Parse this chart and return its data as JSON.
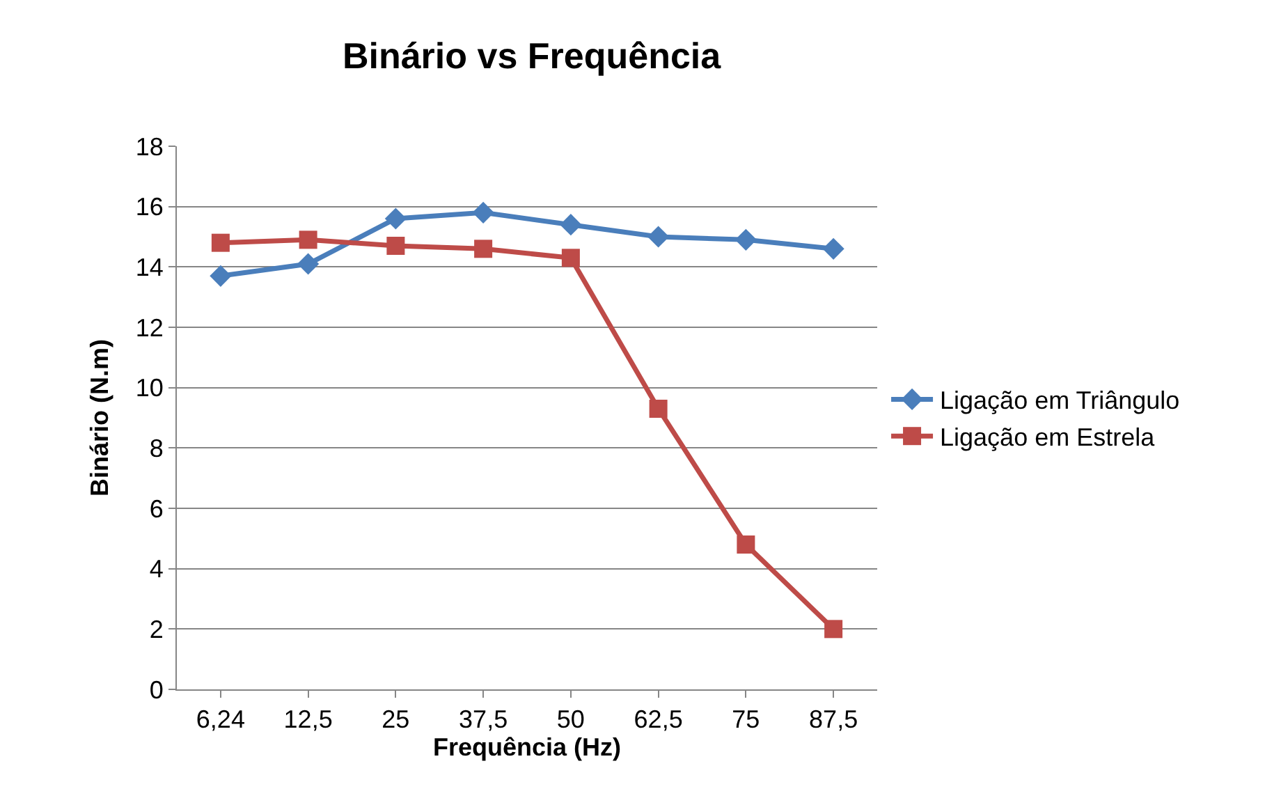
{
  "chart_data": {
    "type": "line",
    "title": "Binário vs Frequência",
    "xlabel": "Frequência (Hz)",
    "ylabel": "Binário (N.m)",
    "categories": [
      "6,24",
      "12,5",
      "25",
      "37,5",
      "50",
      "62,5",
      "75",
      "87,5"
    ],
    "series": [
      {
        "name": "Ligação em Triângulo",
        "color": "#4a7ebb",
        "marker": "diamond",
        "values": [
          13.7,
          14.1,
          15.6,
          15.8,
          15.4,
          15.0,
          14.9,
          14.6
        ]
      },
      {
        "name": "Ligação em Estrela",
        "color": "#be4b48",
        "marker": "square",
        "values": [
          14.8,
          14.9,
          14.7,
          14.6,
          14.3,
          9.3,
          4.8,
          2.0
        ]
      }
    ],
    "ylim": [
      0,
      18
    ],
    "yticks": [
      0,
      2,
      4,
      6,
      8,
      10,
      12,
      14,
      16,
      18
    ],
    "grid": "y",
    "legend": "right",
    "line_style": "solid"
  }
}
